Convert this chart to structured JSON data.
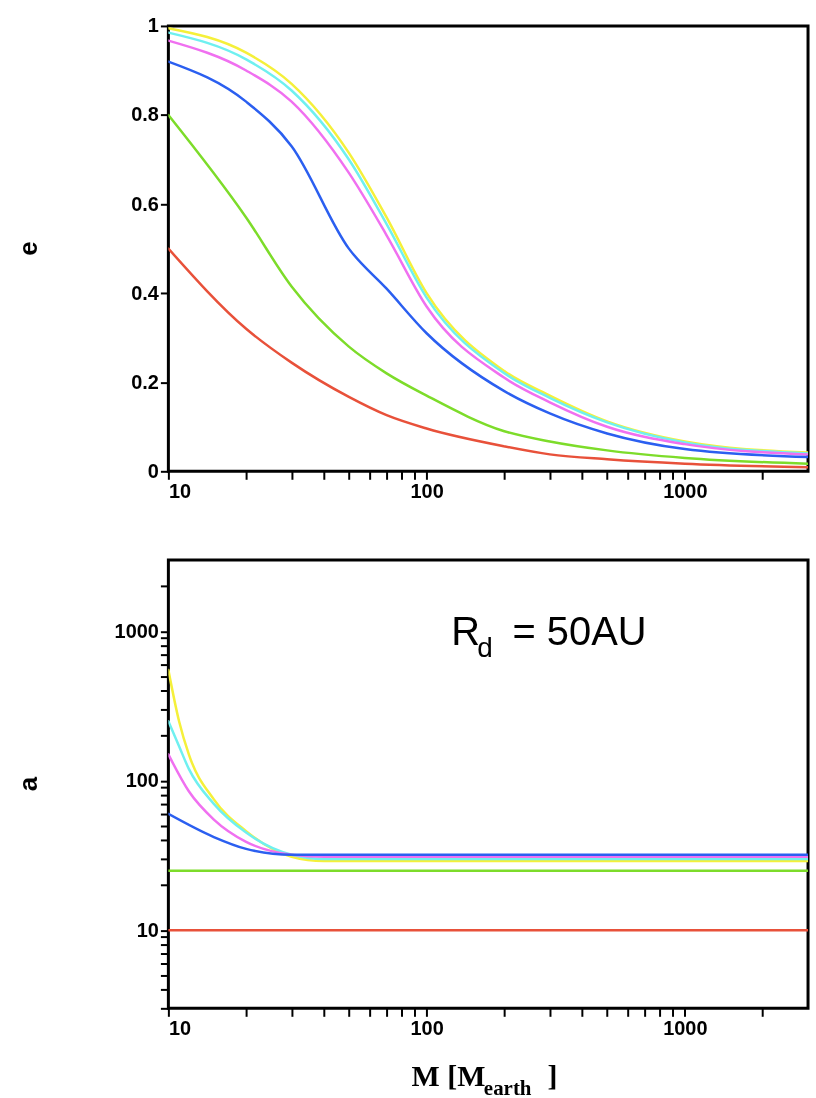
{
  "chart_data": [
    {
      "type": "line",
      "ylabel": "e",
      "log": "x",
      "grid": false,
      "xlim": [
        10,
        3000
      ],
      "ylim": [
        0,
        1
      ],
      "xticks": [
        10,
        {
          "value": 20,
          "label": null
        },
        {
          "value": 30,
          "label": null
        },
        {
          "value": 40,
          "label": null
        },
        {
          "value": 50,
          "label": null
        },
        {
          "value": 60,
          "label": null
        },
        {
          "value": 70,
          "label": null
        },
        {
          "value": 80,
          "label": null
        },
        {
          "value": 90,
          "label": null
        },
        100,
        {
          "value": 200,
          "label": null
        },
        {
          "value": 300,
          "label": null
        },
        {
          "value": 400,
          "label": null
        },
        {
          "value": 500,
          "label": null
        },
        {
          "value": 600,
          "label": null
        },
        {
          "value": 700,
          "label": null
        },
        {
          "value": 800,
          "label": null
        },
        {
          "value": 900,
          "label": null
        },
        1000,
        {
          "value": 2000,
          "label": null
        }
      ],
      "yticks": [
        0,
        0.2,
        0.4,
        0.6,
        0.8,
        1
      ],
      "series": [
        {
          "color": "#e8513a",
          "x": [
            10,
            20,
            30,
            50,
            70,
            100,
            200,
            300,
            500,
            1000,
            3000
          ],
          "values": [
            0.5,
            0.32,
            0.244,
            0.167,
            0.126,
            0.096,
            0.056,
            0.038,
            0.027,
            0.017,
            0.009
          ]
        },
        {
          "color": "#7ddc2a",
          "x": [
            10,
            20,
            30,
            50,
            70,
            100,
            200,
            300,
            500,
            1000,
            3000
          ],
          "values": [
            0.8,
            0.57,
            0.415,
            0.28,
            0.22,
            0.17,
            0.09,
            0.067,
            0.047,
            0.03,
            0.017
          ]
        },
        {
          "color": "#2b5ff0",
          "x": [
            10,
            20,
            30,
            50,
            70,
            100,
            200,
            300,
            500,
            1000,
            3000
          ],
          "values": [
            0.92,
            0.83,
            0.73,
            0.5,
            0.41,
            0.31,
            0.18,
            0.13,
            0.085,
            0.05,
            0.032
          ]
        },
        {
          "color": "#f070f0",
          "x": [
            10,
            20,
            30,
            50,
            70,
            100,
            200,
            300,
            500,
            1000,
            3000
          ],
          "values": [
            0.967,
            0.9,
            0.83,
            0.67,
            0.53,
            0.37,
            0.21,
            0.155,
            0.1,
            0.061,
            0.038
          ]
        },
        {
          "color": "#6ff0f0",
          "x": [
            10,
            20,
            30,
            50,
            70,
            100,
            200,
            300,
            500,
            1000,
            3000
          ],
          "values": [
            0.985,
            0.925,
            0.855,
            0.7,
            0.555,
            0.39,
            0.22,
            0.165,
            0.11,
            0.065,
            0.04
          ]
        },
        {
          "color": "#f5f03a",
          "x": [
            10,
            20,
            30,
            50,
            70,
            100,
            200,
            300,
            500,
            1000,
            3000
          ],
          "values": [
            0.995,
            0.94,
            0.87,
            0.715,
            0.57,
            0.4,
            0.225,
            0.17,
            0.112,
            0.067,
            0.042
          ]
        }
      ]
    },
    {
      "type": "line",
      "xlabel": "M [M$_{earth}$]",
      "ylabel": "a",
      "log": "xy",
      "grid": false,
      "xlim": [
        10,
        3000
      ],
      "ylim": [
        3,
        3000
      ],
      "xticks": [
        10,
        {
          "value": 20,
          "label": null
        },
        {
          "value": 30,
          "label": null
        },
        {
          "value": 40,
          "label": null
        },
        {
          "value": 50,
          "label": null
        },
        {
          "value": 60,
          "label": null
        },
        {
          "value": 70,
          "label": null
        },
        {
          "value": 80,
          "label": null
        },
        {
          "value": 90,
          "label": null
        },
        100,
        {
          "value": 200,
          "label": null
        },
        {
          "value": 300,
          "label": null
        },
        {
          "value": 400,
          "label": null
        },
        {
          "value": 500,
          "label": null
        },
        {
          "value": 600,
          "label": null
        },
        {
          "value": 700,
          "label": null
        },
        {
          "value": 800,
          "label": null
        },
        {
          "value": 900,
          "label": null
        },
        1000,
        {
          "value": 2000,
          "label": null
        }
      ],
      "yticks": [
        {
          "value": 3,
          "label": null
        },
        {
          "value": 4,
          "label": null
        },
        {
          "value": 5,
          "label": null
        },
        {
          "value": 6,
          "label": null
        },
        {
          "value": 7,
          "label": null
        },
        {
          "value": 8,
          "label": null
        },
        {
          "value": 9,
          "label": null
        },
        10,
        {
          "value": 20,
          "label": null
        },
        {
          "value": 30,
          "label": null
        },
        {
          "value": 40,
          "label": null
        },
        {
          "value": 50,
          "label": null
        },
        {
          "value": 60,
          "label": null
        },
        {
          "value": 70,
          "label": null
        },
        {
          "value": 80,
          "label": null
        },
        {
          "value": 90,
          "label": null
        },
        100,
        {
          "value": 200,
          "label": null
        },
        {
          "value": 300,
          "label": null
        },
        {
          "value": 400,
          "label": null
        },
        {
          "value": 500,
          "label": null
        },
        {
          "value": 600,
          "label": null
        },
        {
          "value": 700,
          "label": null
        },
        {
          "value": 800,
          "label": null
        },
        {
          "value": 900,
          "label": null
        },
        1000,
        {
          "value": 2000,
          "label": null
        }
      ],
      "annotations": [
        "R$_{d}$ = 50AU"
      ],
      "series": [
        {
          "color": "#e8513a",
          "x": [
            10,
            3000
          ],
          "values": [
            10,
            10
          ]
        },
        {
          "color": "#7ddc2a",
          "x": [
            10,
            3000
          ],
          "values": [
            25,
            25
          ]
        },
        {
          "color": "#2b5ff0",
          "x": [
            10,
            15,
            20,
            30,
            3000
          ],
          "values": [
            60,
            42,
            35,
            32,
            32
          ]
        },
        {
          "color": "#f070f0",
          "x": [
            10,
            12,
            15,
            20,
            30,
            40,
            3000
          ],
          "values": [
            150,
            85,
            55,
            39,
            32,
            31,
            31
          ]
        },
        {
          "color": "#6ff0f0",
          "x": [
            10,
            11,
            12,
            15,
            20,
            30,
            40,
            3000
          ],
          "values": [
            250,
            170,
            120,
            70,
            45,
            32,
            30,
            30
          ]
        },
        {
          "color": "#f5f03a",
          "x": [
            10,
            11,
            12,
            15,
            20,
            30,
            40,
            3000
          ],
          "values": [
            550,
            250,
            150,
            75,
            46,
            31,
            29,
            29
          ]
        }
      ]
    }
  ]
}
